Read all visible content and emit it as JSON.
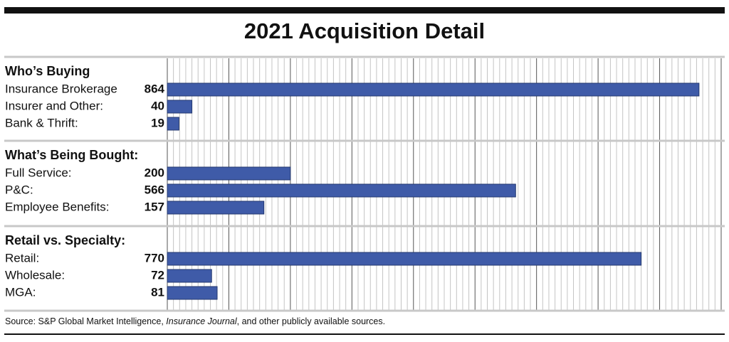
{
  "chart_data": {
    "type": "bar",
    "title": "2021 Acquisition Detail",
    "groups": [
      {
        "name": "Who’s Buying",
        "categories": [
          "Insurance Brokerage",
          "Insurer and Other:",
          "Bank & Thrift:"
        ],
        "values": [
          864,
          40,
          19
        ]
      },
      {
        "name": "What’s Being Bought:",
        "categories": [
          "Full Service:",
          "P&C:",
          "Employee Benefits:"
        ],
        "values": [
          200,
          566,
          157
        ]
      },
      {
        "name": "Retail vs. Specialty:",
        "categories": [
          "Retail:",
          "Wholesale:",
          "MGA:"
        ],
        "values": [
          770,
          72,
          81
        ]
      }
    ],
    "color": "#3f5ba8",
    "xlim": [
      0,
      900
    ],
    "xticks": [
      0,
      100,
      200,
      300,
      400,
      500,
      600,
      700,
      800,
      900
    ],
    "grid": true,
    "minor_grid": 10,
    "source": [
      "Source: S&P Global Market Intelligence, ",
      "Insurance Journal",
      ", and other publicly available sources."
    ]
  }
}
